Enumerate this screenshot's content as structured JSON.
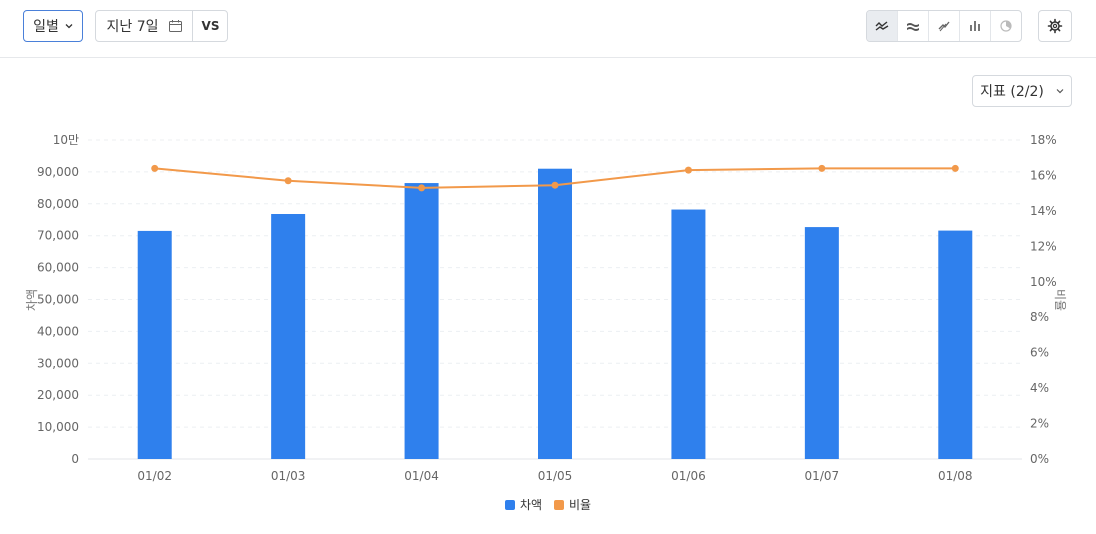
{
  "toolbar": {
    "period_label": "일별",
    "date_range_label": "지난 7일",
    "compare_label": "VS",
    "chart_type_icons": [
      "line-chart-icon",
      "area-chart-icon",
      "step-chart-icon",
      "bar-chart-icon",
      "pie-chart-icon"
    ],
    "active_chart_type": 0,
    "metric_label": "지표 (2/2)"
  },
  "chart_data": {
    "type": "bar+line",
    "categories": [
      "01/02",
      "01/03",
      "01/04",
      "01/05",
      "01/06",
      "01/07",
      "01/08"
    ],
    "series": [
      {
        "name": "차액",
        "type": "bar",
        "axis": "left",
        "color": "#2f80ed",
        "values": [
          71500,
          76800,
          86500,
          91000,
          78200,
          72700,
          71600
        ]
      },
      {
        "name": "비율",
        "type": "line",
        "axis": "right",
        "color": "#f2994a",
        "values": [
          16.4,
          15.7,
          15.3,
          15.45,
          16.3,
          16.4,
          16.4
        ]
      }
    ],
    "left_axis": {
      "title": "차액",
      "min": 0,
      "max": 100000,
      "tick_labels": [
        "0",
        "10,000",
        "20,000",
        "30,000",
        "40,000",
        "50,000",
        "60,000",
        "70,000",
        "80,000",
        "90,000",
        "10만"
      ]
    },
    "right_axis": {
      "title": "비율",
      "min": 0,
      "max": 18,
      "tick_labels": [
        "0%",
        "2%",
        "4%",
        "6%",
        "8%",
        "10%",
        "12%",
        "14%",
        "16%",
        "18%"
      ]
    },
    "grid": true,
    "legend": "bottom"
  }
}
